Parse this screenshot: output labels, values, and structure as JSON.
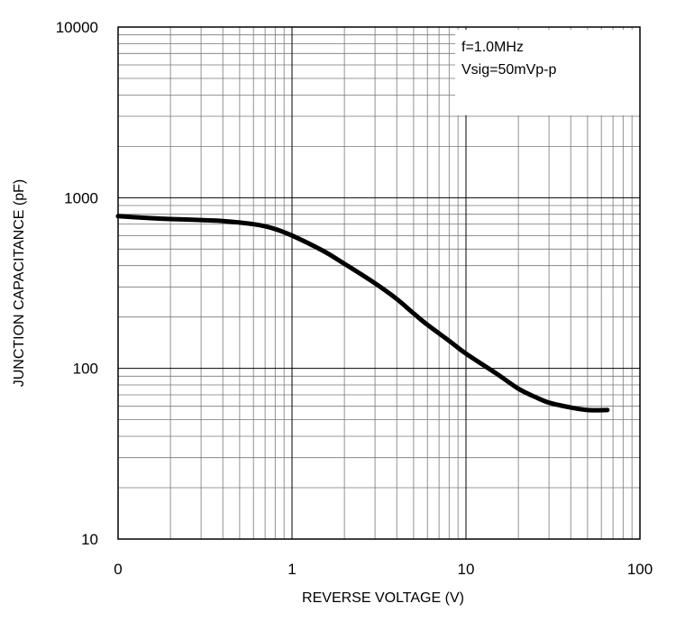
{
  "chart_data": {
    "type": "line",
    "xlabel": "REVERSE VOLTAGE (V)",
    "ylabel": "JUNCTION CAPACITANCE (pF)",
    "x_scale": "log",
    "y_scale": "log",
    "xlim": [
      0.1,
      100
    ],
    "ylim": [
      10,
      10000
    ],
    "x_tick_labels": [
      "0",
      "1",
      "10",
      "100"
    ],
    "y_tick_labels": [
      "10",
      "100",
      "1000",
      "10000"
    ],
    "grid": true,
    "annotation": [
      "f=1.0MHz",
      "Vsig=50mVp-p"
    ],
    "annotation_placement": "top-right",
    "line_color": "#000000",
    "series": [
      {
        "x": [
          0.1,
          0.15,
          0.2,
          0.3,
          0.4,
          0.5,
          0.6,
          0.7,
          0.8,
          1.0,
          1.5,
          2,
          3,
          4,
          5,
          6,
          8,
          10,
          15,
          20,
          25,
          30,
          40,
          50,
          65
        ],
        "y": [
          780,
          760,
          750,
          740,
          730,
          715,
          700,
          680,
          655,
          600,
          490,
          410,
          315,
          255,
          210,
          180,
          145,
          122,
          93,
          76,
          68,
          63,
          59,
          57,
          57
        ]
      }
    ]
  }
}
